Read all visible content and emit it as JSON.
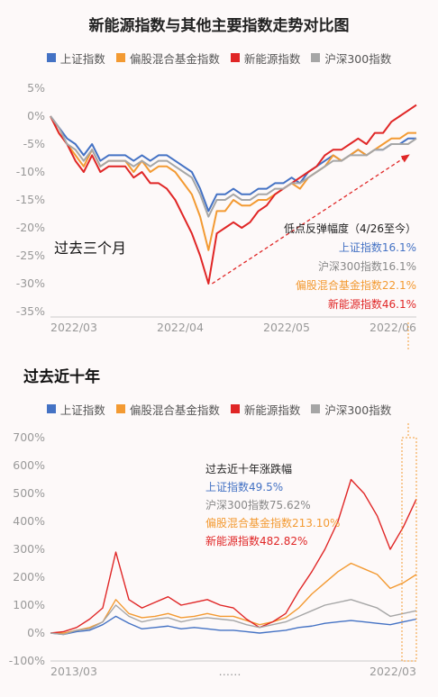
{
  "title": "新能源指数与其他主要指数走势对比图",
  "legend": [
    {
      "name": "上证指数",
      "color": "#4472c4"
    },
    {
      "name": "偏股混合基金指数",
      "color": "#f39a32"
    },
    {
      "name": "新能源指数",
      "color": "#e02626"
    },
    {
      "name": "沪深300指数",
      "color": "#a6a6a6"
    }
  ],
  "chart_data": [
    {
      "type": "line",
      "section_title": "过去三个月",
      "x_tick_labels": [
        "2022/03",
        "2022/04",
        "2022/05",
        "2022/06"
      ],
      "y_tick_labels": [
        "5%",
        "0%",
        "-5%",
        "-10%",
        "-15%",
        "-20%",
        "-25%",
        "-30%",
        "-35%"
      ],
      "ylim": [
        -35,
        5
      ],
      "grid": false,
      "x": [
        0,
        2,
        4,
        6,
        8,
        10,
        12,
        14,
        16,
        18,
        20,
        22,
        24,
        26,
        28,
        30,
        32,
        34,
        36,
        38,
        40,
        42,
        44,
        46,
        48,
        50,
        52,
        54,
        56,
        58,
        60,
        62,
        64,
        66,
        68,
        70,
        72,
        74,
        76,
        78,
        80,
        82,
        84,
        86,
        88
      ],
      "series": [
        {
          "name": "上证指数",
          "color": "#4472c4",
          "values": [
            0,
            -2,
            -4,
            -5,
            -7,
            -5,
            -8,
            -7,
            -7,
            -7,
            -8,
            -7,
            -8,
            -7,
            -7,
            -8,
            -9,
            -10,
            -13,
            -17,
            -14,
            -14,
            -13,
            -14,
            -14,
            -13,
            -13,
            -12,
            -12,
            -11,
            -12,
            -10,
            -9,
            -8,
            -7,
            -8,
            -7,
            -6,
            -7,
            -6,
            -6,
            -5,
            -5,
            -4,
            -4
          ]
        },
        {
          "name": "偏股混合基金指数",
          "color": "#f39a32",
          "values": [
            0,
            -3,
            -5,
            -7,
            -9,
            -6,
            -9,
            -8,
            -8,
            -8,
            -10,
            -8,
            -10,
            -9,
            -9,
            -10,
            -12,
            -14,
            -18,
            -24,
            -17,
            -17,
            -15,
            -16,
            -16,
            -15,
            -15,
            -14,
            -13,
            -12,
            -13,
            -11,
            -10,
            -9,
            -7,
            -8,
            -7,
            -6,
            -7,
            -6,
            -5,
            -4,
            -4,
            -3,
            -3
          ]
        },
        {
          "name": "新能源指数",
          "color": "#e02626",
          "values": [
            0,
            -3,
            -5,
            -8,
            -10,
            -7,
            -10,
            -9,
            -9,
            -9,
            -11,
            -10,
            -12,
            -12,
            -13,
            -15,
            -18,
            -21,
            -25,
            -30,
            -21,
            -20,
            -19,
            -20,
            -19,
            -17,
            -16,
            -14,
            -13,
            -12,
            -11,
            -10,
            -9,
            -7,
            -6,
            -6,
            -5,
            -4,
            -5,
            -3,
            -3,
            -1,
            0,
            1,
            2
          ]
        },
        {
          "name": "沪深300指数",
          "color": "#a6a6a6",
          "values": [
            0,
            -2,
            -5,
            -6,
            -8,
            -6,
            -9,
            -8,
            -8,
            -8,
            -9,
            -8,
            -9,
            -8,
            -8,
            -9,
            -10,
            -11,
            -14,
            -18,
            -15,
            -15,
            -14,
            -15,
            -15,
            -14,
            -14,
            -13,
            -13,
            -12,
            -12,
            -11,
            -10,
            -9,
            -8,
            -8,
            -7,
            -7,
            -7,
            -6,
            -6,
            -5,
            -5,
            -5,
            -4
          ]
        }
      ],
      "annotation": {
        "title": "低点反弹幅度（4/26至今）",
        "lines": [
          {
            "text": "上证指数16.1%",
            "color": "#4472c4"
          },
          {
            "text": "沪深300指数16.1%",
            "color": "#888888"
          },
          {
            "text": "偏股混合基金指数22.1%",
            "color": "#f39a32"
          },
          {
            "text": "新能源指数46.1%",
            "color": "#e02626"
          }
        ]
      }
    },
    {
      "type": "line",
      "section_title": "过去近十年",
      "x_tick_labels": [
        "2013/03",
        "……",
        "2022/03"
      ],
      "y_tick_labels": [
        "700%",
        "600%",
        "500%",
        "400%",
        "300%",
        "200%",
        "100%",
        "0%",
        "-100%"
      ],
      "ylim": [
        -100,
        700
      ],
      "grid": false,
      "x": [
        0,
        4,
        8,
        12,
        16,
        20,
        24,
        28,
        32,
        36,
        40,
        44,
        48,
        52,
        56,
        60,
        64,
        68,
        72,
        76,
        80,
        84,
        88,
        92,
        96,
        100,
        104,
        108,
        112
      ],
      "series": [
        {
          "name": "上证指数",
          "color": "#4472c4",
          "values": [
            0,
            -5,
            5,
            10,
            30,
            60,
            35,
            15,
            20,
            25,
            15,
            20,
            15,
            10,
            10,
            5,
            0,
            5,
            10,
            20,
            25,
            35,
            40,
            45,
            40,
            35,
            30,
            40,
            50
          ]
        },
        {
          "name": "偏股混合基金指数",
          "color": "#f39a32",
          "values": [
            0,
            0,
            10,
            20,
            40,
            120,
            70,
            55,
            60,
            70,
            55,
            60,
            70,
            60,
            60,
            45,
            30,
            40,
            55,
            90,
            140,
            180,
            220,
            250,
            230,
            210,
            160,
            180,
            210
          ]
        },
        {
          "name": "新能源指数",
          "color": "#e02626",
          "values": [
            0,
            5,
            20,
            50,
            90,
            290,
            120,
            90,
            110,
            130,
            100,
            110,
            120,
            100,
            90,
            50,
            20,
            40,
            70,
            150,
            220,
            300,
            400,
            550,
            500,
            420,
            300,
            380,
            480
          ]
        },
        {
          "name": "沪深300指数",
          "color": "#a6a6a6",
          "values": [
            0,
            -5,
            10,
            15,
            40,
            100,
            60,
            40,
            50,
            55,
            40,
            50,
            55,
            50,
            45,
            30,
            20,
            30,
            40,
            60,
            80,
            100,
            110,
            120,
            105,
            90,
            60,
            70,
            80
          ]
        }
      ],
      "annotation": {
        "title": "过去近十年涨跌幅",
        "lines": [
          {
            "text": "上证指数49.5%",
            "color": "#4472c4"
          },
          {
            "text": "沪深300指数75.62%",
            "color": "#888888"
          },
          {
            "text": "偏股混合基金指数213.10%",
            "color": "#f39a32"
          },
          {
            "text": "新能源指数482.82%",
            "color": "#e02626"
          }
        ]
      }
    }
  ]
}
